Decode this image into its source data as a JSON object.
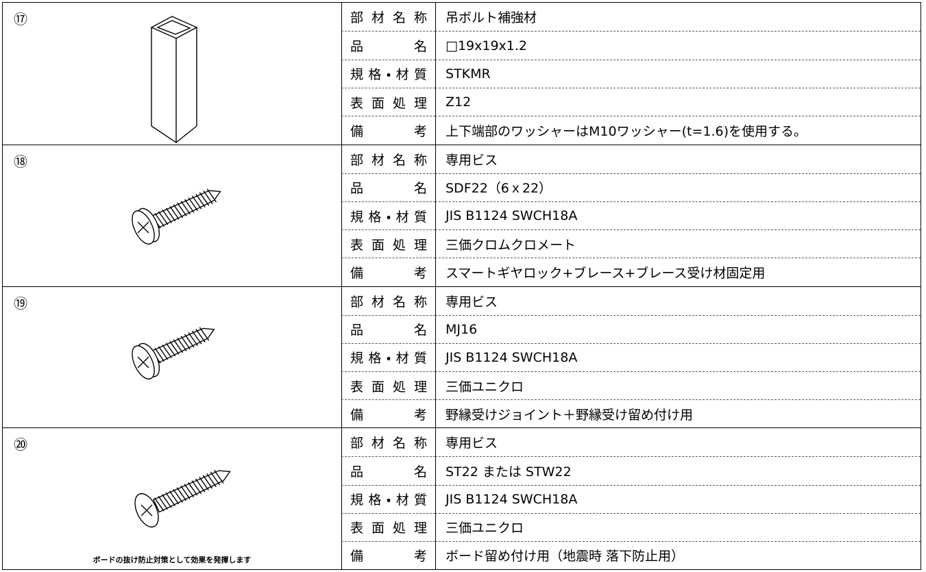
{
  "items": [
    {
      "number": "⑰",
      "rows": [
        {
          "label": "部材名称",
          "value": "吊ボルト補強材"
        },
        {
          "label": "品　　名",
          "value": "□19x19x1.2"
        },
        {
          "label": "規格・材質",
          "value": "STKMR"
        },
        {
          "label": "表面処理",
          "value": "Z12"
        },
        {
          "label": "備　　考",
          "value": "上下端部のワッシャーはM10ワッシャー(t=1.6)を使用する。"
        }
      ]
    },
    {
      "number": "⑱",
      "rows": [
        {
          "label": "部材名称",
          "value": "専用ビス"
        },
        {
          "label": "品　　名",
          "value": "SDF22（6ｘ22）"
        },
        {
          "label": "規格・材質",
          "value": "JIS B1124 SWCH18A"
        },
        {
          "label": "表面処理",
          "value": "三価クロムクロメート"
        },
        {
          "label": "備　　考",
          "value": "スマートギヤロック+ブレース+ブレース受け材固定用"
        }
      ]
    },
    {
      "number": "⑲",
      "rows": [
        {
          "label": "部材名称",
          "value": "専用ビス"
        },
        {
          "label": "品　　名",
          "value": "MJ16"
        },
        {
          "label": "規格・材質",
          "value": "JIS B1124 SWCH18A"
        },
        {
          "label": "表面処理",
          "value": "三価ユニクロ"
        },
        {
          "label": "備　　考",
          "value": "野縁受けジョイント＋野縁受け留め付け用"
        }
      ]
    },
    {
      "number": "⑳",
      "caption": "ボードの抜け防止対策として効果を発揮します",
      "rows": [
        {
          "label": "部材名称",
          "value": "専用ビス"
        },
        {
          "label": "品　　名",
          "value": "ST22 または STW22"
        },
        {
          "label": "規格・材質",
          "value": "JIS B1124 SWCH18A"
        },
        {
          "label": "表面処理",
          "value": "三価ユニクロ"
        },
        {
          "label": "備　　考",
          "value": "ボード留め付け用（地震時 落下防止用）"
        }
      ]
    }
  ]
}
